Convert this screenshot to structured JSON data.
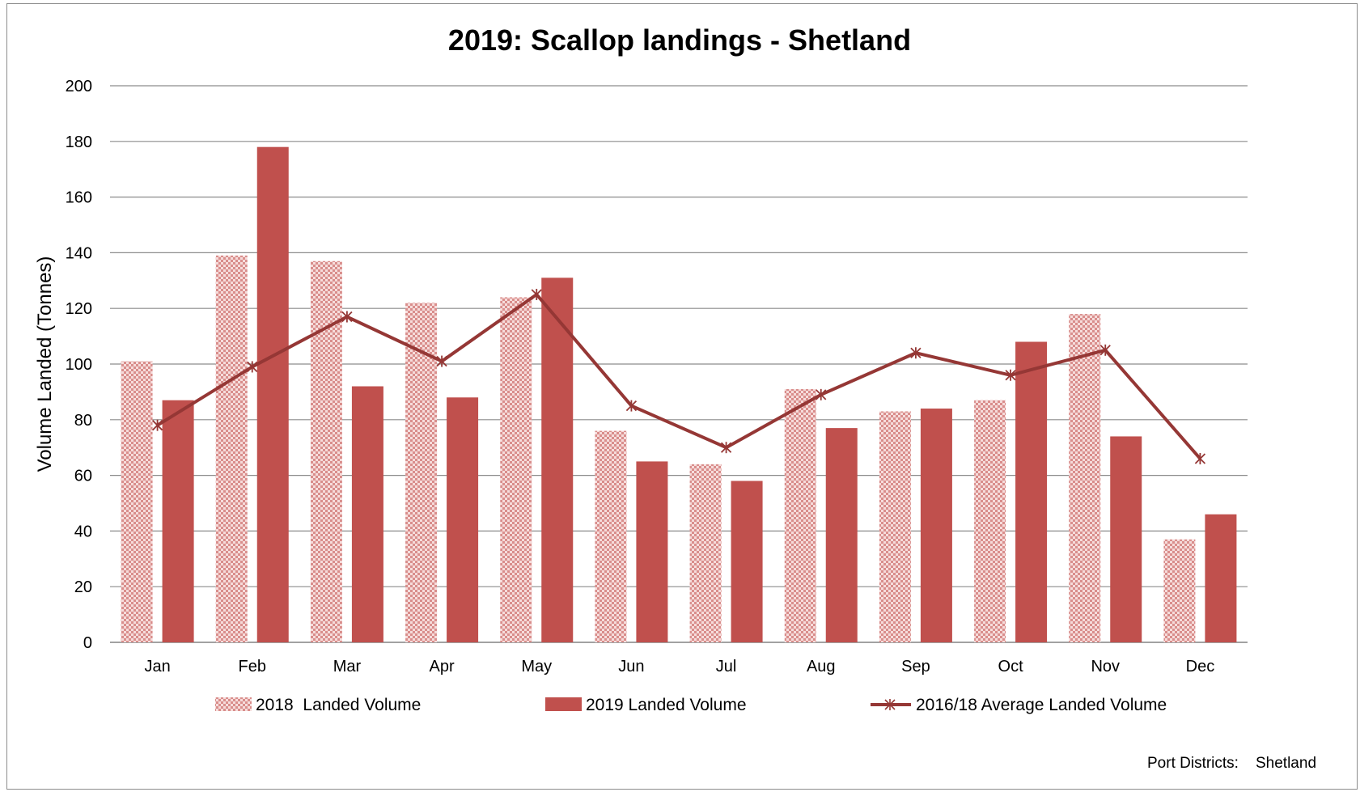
{
  "chart_data": {
    "type": "bar",
    "title": "2019: Scallop landings - Shetland",
    "ylabel": "Volume Landed (Tonnes)",
    "xlabel": "",
    "ylim": [
      0,
      200
    ],
    "yticks": [
      "0",
      "20",
      "40",
      "60",
      "80",
      "100",
      "120",
      "140",
      "160",
      "180",
      "200"
    ],
    "categories": [
      "Jan",
      "Feb",
      "Mar",
      "Apr",
      "May",
      "Jun",
      "Jul",
      "Aug",
      "Sep",
      "Oct",
      "Nov",
      "Dec"
    ],
    "series": [
      {
        "name": "2018  Landed Volume",
        "kind": "bar",
        "pattern": "checker",
        "values": [
          101,
          139,
          137,
          122,
          124,
          76,
          64,
          91,
          83,
          87,
          118,
          37
        ]
      },
      {
        "name": "2019 Landed Volume",
        "kind": "bar",
        "pattern": "solid",
        "values": [
          87,
          178,
          92,
          88,
          131,
          65,
          58,
          77,
          84,
          108,
          74,
          46
        ]
      },
      {
        "name": "2016/18 Average Landed Volume",
        "kind": "line",
        "marker": "asterisk",
        "values": [
          78,
          99,
          117,
          101,
          125,
          85,
          70,
          89,
          104,
          96,
          105,
          66
        ]
      }
    ],
    "grid": true,
    "legend_position": "bottom"
  },
  "colors": {
    "bar_solid": "#c0504d",
    "bar_pattern_light": "#f2c9c8",
    "bar_pattern_dark": "#d98e8c",
    "line": "#953735",
    "gridline": "#8c8c8c"
  },
  "footer": {
    "label": "Port Districts:",
    "value": "Shetland"
  }
}
